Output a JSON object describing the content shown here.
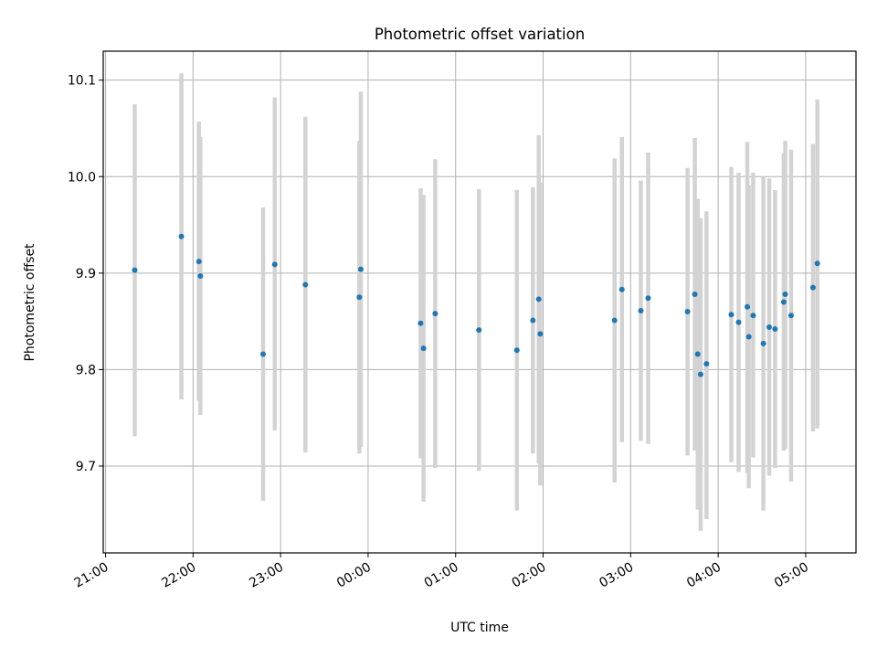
{
  "chart_data": {
    "type": "scatter",
    "title": "Photometric offset variation",
    "xlabel": "UTC time",
    "ylabel": "Photometric offset",
    "x_is_time": true,
    "xlim": [
      "21:00",
      "05:30"
    ],
    "ylim": [
      9.61,
      10.13
    ],
    "x_ticks": [
      "21:00",
      "22:00",
      "23:00",
      "00:00",
      "01:00",
      "02:00",
      "03:00",
      "04:00",
      "05:00"
    ],
    "y_ticks": [
      9.7,
      9.8,
      9.9,
      10.0,
      10.1
    ],
    "y_tick_labels": [
      "9.7",
      "9.8",
      "9.9",
      "10.0",
      "10.1"
    ],
    "grid": true,
    "colors": {
      "points": "#1f77b4",
      "errorbars": "#d3d3d3",
      "grid": "#b0b0b0"
    },
    "series": [
      {
        "points": [
          {
            "t": "21:20",
            "y": 9.903,
            "lo": 9.731,
            "hi": 10.075
          },
          {
            "t": "21:52",
            "y": 9.938,
            "lo": 9.769,
            "hi": 10.107
          },
          {
            "t": "22:04",
            "y": 9.912,
            "lo": 9.768,
            "hi": 10.057
          },
          {
            "t": "22:05",
            "y": 9.897,
            "lo": 9.753,
            "hi": 10.041
          },
          {
            "t": "22:48",
            "y": 9.816,
            "lo": 9.664,
            "hi": 9.968
          },
          {
            "t": "22:56",
            "y": 9.909,
            "lo": 9.737,
            "hi": 10.082
          },
          {
            "t": "23:17",
            "y": 9.888,
            "lo": 9.714,
            "hi": 10.062
          },
          {
            "t": "23:54",
            "y": 9.875,
            "lo": 9.713,
            "hi": 10.037
          },
          {
            "t": "23:55",
            "y": 9.904,
            "lo": 9.72,
            "hi": 10.088
          },
          {
            "t": "00:36",
            "y": 9.848,
            "lo": 9.708,
            "hi": 9.988
          },
          {
            "t": "00:38",
            "y": 9.822,
            "lo": 9.663,
            "hi": 9.981
          },
          {
            "t": "00:46",
            "y": 9.858,
            "lo": 9.698,
            "hi": 10.018
          },
          {
            "t": "01:16",
            "y": 9.841,
            "lo": 9.695,
            "hi": 9.987
          },
          {
            "t": "01:42",
            "y": 9.82,
            "lo": 9.654,
            "hi": 9.986
          },
          {
            "t": "01:53",
            "y": 9.851,
            "lo": 9.713,
            "hi": 9.989
          },
          {
            "t": "01:57",
            "y": 9.873,
            "lo": 9.703,
            "hi": 10.043
          },
          {
            "t": "01:58",
            "y": 9.837,
            "lo": 9.68,
            "hi": 9.994
          },
          {
            "t": "02:49",
            "y": 9.851,
            "lo": 9.683,
            "hi": 10.019
          },
          {
            "t": "02:54",
            "y": 9.883,
            "lo": 9.725,
            "hi": 10.041
          },
          {
            "t": "03:07",
            "y": 9.861,
            "lo": 9.726,
            "hi": 9.996
          },
          {
            "t": "03:12",
            "y": 9.874,
            "lo": 9.723,
            "hi": 10.025
          },
          {
            "t": "03:39",
            "y": 9.86,
            "lo": 9.711,
            "hi": 10.009
          },
          {
            "t": "03:44",
            "y": 9.878,
            "lo": 9.716,
            "hi": 10.04
          },
          {
            "t": "03:46",
            "y": 9.816,
            "lo": 9.655,
            "hi": 9.977
          },
          {
            "t": "03:48",
            "y": 9.795,
            "lo": 9.633,
            "hi": 9.957
          },
          {
            "t": "03:52",
            "y": 9.806,
            "lo": 9.645,
            "hi": 9.964
          },
          {
            "t": "04:09",
            "y": 9.857,
            "lo": 9.704,
            "hi": 10.01
          },
          {
            "t": "04:14",
            "y": 9.849,
            "lo": 9.694,
            "hi": 10.004
          },
          {
            "t": "04:20",
            "y": 9.865,
            "lo": 9.693,
            "hi": 10.036
          },
          {
            "t": "04:21",
            "y": 9.834,
            "lo": 9.677,
            "hi": 9.991
          },
          {
            "t": "04:24",
            "y": 9.856,
            "lo": 9.709,
            "hi": 10.004
          },
          {
            "t": "04:31",
            "y": 9.827,
            "lo": 9.654,
            "hi": 10.0
          },
          {
            "t": "04:35",
            "y": 9.844,
            "lo": 9.69,
            "hi": 9.998
          },
          {
            "t": "04:39",
            "y": 9.842,
            "lo": 9.698,
            "hi": 9.986
          },
          {
            "t": "04:45",
            "y": 9.87,
            "lo": 9.716,
            "hi": 10.024
          },
          {
            "t": "04:46",
            "y": 9.878,
            "lo": 9.718,
            "hi": 10.037
          },
          {
            "t": "04:50",
            "y": 9.856,
            "lo": 9.684,
            "hi": 10.028
          },
          {
            "t": "05:05",
            "y": 9.885,
            "lo": 9.736,
            "hi": 10.034
          },
          {
            "t": "05:08",
            "y": 9.91,
            "lo": 9.739,
            "hi": 10.08
          }
        ]
      }
    ]
  }
}
